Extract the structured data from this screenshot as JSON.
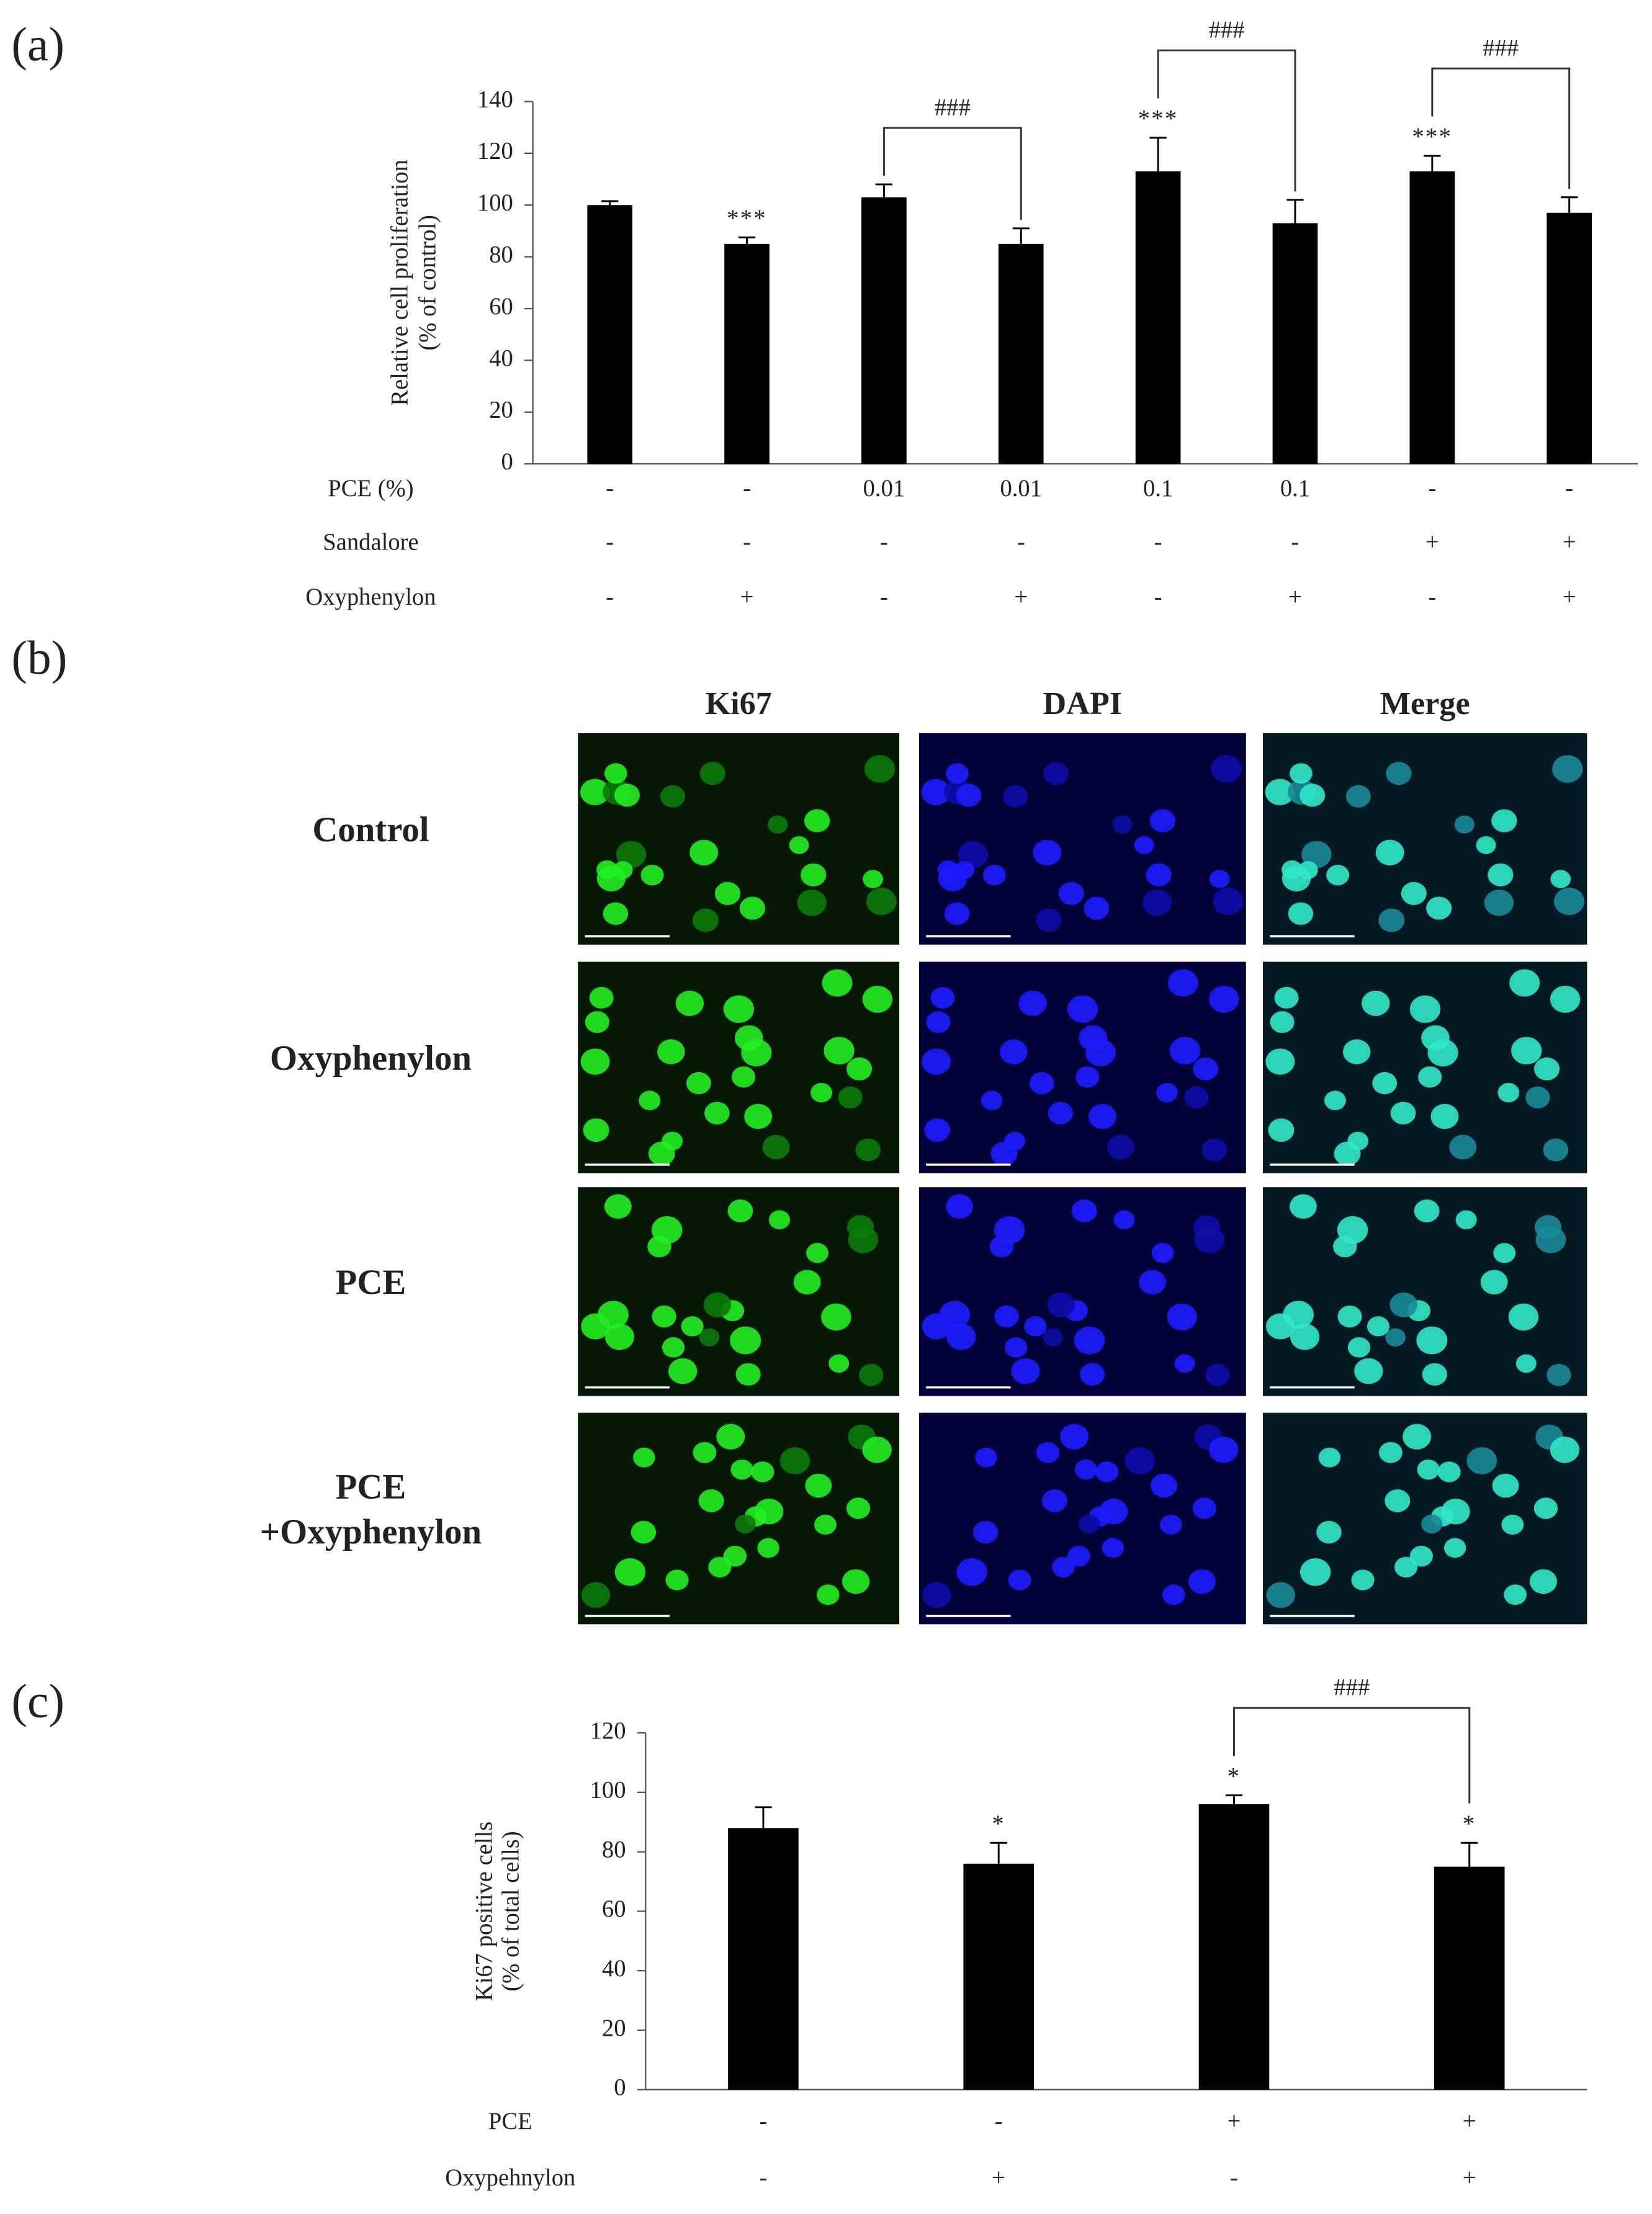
{
  "chart_data": [
    {
      "type": "bar",
      "panel_label": "(a)",
      "y_label": [
        "Relative cell proliferation",
        "(% of control)"
      ],
      "categories": [
        null,
        null,
        null,
        null,
        null,
        null,
        null,
        null
      ],
      "values": [
        100,
        85,
        103,
        85,
        113,
        93,
        113,
        97
      ],
      "errors": [
        1.5,
        2.5,
        5,
        6,
        13,
        9,
        6,
        6
      ],
      "significance": [
        null,
        "***",
        null,
        null,
        "***",
        null,
        "***",
        null
      ],
      "comparisons": [
        {
          "from": 2,
          "to": 3,
          "label": "###"
        },
        {
          "from": 4,
          "to": 5,
          "label": "###"
        },
        {
          "from": 6,
          "to": 7,
          "label": "###"
        }
      ],
      "conditions": [
        {
          "label": "PCE (%)",
          "values": [
            "-",
            "-",
            "0.01",
            "0.01",
            "0.1",
            "0.1",
            "-",
            "-"
          ]
        },
        {
          "label": "Sandalore",
          "values": [
            "-",
            "-",
            "-",
            "-",
            "-",
            "-",
            "+",
            "+"
          ]
        },
        {
          "label": "Oxyphenylon",
          "values": [
            "-",
            "+",
            "-",
            "+",
            "-",
            "+",
            "-",
            "+"
          ]
        }
      ],
      "color": "#000000",
      "ylim": [
        0,
        140
      ],
      "yticks": [
        0,
        20,
        40,
        60,
        80,
        100,
        120,
        140
      ]
    },
    {
      "type": "bar",
      "panel_label": "(c)",
      "y_label": [
        "Ki67 positive cells",
        "(% of total cells)"
      ],
      "categories": [
        null,
        null,
        null,
        null
      ],
      "values": [
        88,
        76,
        96,
        75
      ],
      "errors": [
        7,
        7,
        3,
        8
      ],
      "significance": [
        null,
        "*",
        "*",
        "*"
      ],
      "comparisons": [
        {
          "from": 2,
          "to": 3,
          "label": "###"
        }
      ],
      "conditions": [
        {
          "label": "PCE",
          "values": [
            "-",
            "-",
            "+",
            "+"
          ]
        },
        {
          "label": "Oxypehnylon",
          "values": [
            "-",
            "+",
            "-",
            "+"
          ]
        }
      ],
      "color": "#000000",
      "ylim": [
        0,
        120
      ],
      "yticks": [
        0,
        20,
        40,
        60,
        80,
        100,
        120
      ]
    }
  ],
  "figure_b": {
    "panel_label": "(b)",
    "columns": [
      "Ki67",
      "DAPI",
      "Merge"
    ],
    "rows": [
      [
        "Control"
      ],
      [
        "Oxyphenylon"
      ],
      [
        "PCE"
      ],
      [
        "PCE",
        "+Oxyphenylon"
      ]
    ]
  }
}
